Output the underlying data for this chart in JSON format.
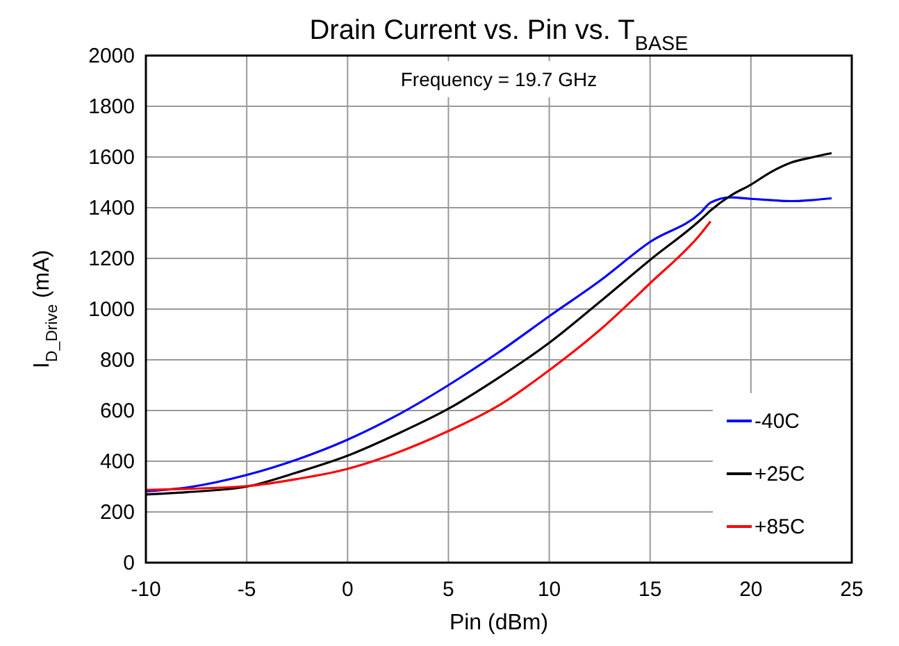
{
  "chart_data": {
    "type": "line",
    "title": "Drain Current vs. Pin vs. T$_{BASE}$",
    "xlabel": "Pin (dBm)",
    "ylabel": "I$_{D_Drive}$ (mA)",
    "annotations": [
      "Frequency = 19.7 GHz"
    ],
    "x": [
      -10,
      -8,
      -5,
      -2.5,
      0,
      2.5,
      5,
      7.5,
      10,
      12.5,
      15,
      17.5,
      18,
      19,
      20,
      21,
      22,
      23,
      24
    ],
    "series": [
      {
        "name": "-40C",
        "color": "#0000ff",
        "values": [
          281,
          296,
          346,
          407,
          485,
          583,
          700,
          830,
          972,
          1111,
          1265,
          1380,
          1420,
          1441,
          1435,
          1430,
          1426,
          1430,
          1437
        ]
      },
      {
        "name": "+25C",
        "color": "#000000",
        "values": [
          269,
          278,
          300,
          356,
          422,
          509,
          607,
          730,
          867,
          1028,
          1194,
          1352,
          1389,
          1448,
          1491,
          1541,
          1578,
          1598,
          1615
        ]
      },
      {
        "name": "+85C",
        "color": "#ff0000",
        "values": [
          287,
          291,
          302,
          330,
          370,
          435,
          519,
          620,
          759,
          917,
          1102,
          1296,
          1346,
          null,
          null,
          null,
          null,
          null,
          null
        ]
      }
    ],
    "xlim": [
      -10,
      25
    ],
    "xticks": [
      -10,
      -5,
      0,
      5,
      10,
      15,
      20,
      25
    ],
    "ylim": [
      0,
      2000
    ],
    "yticks": [
      0,
      200,
      400,
      600,
      800,
      1000,
      1200,
      1400,
      1600,
      1800,
      2000
    ],
    "grid": true,
    "legend": "bottom right",
    "marker": "none",
    "line_style": "solid"
  }
}
